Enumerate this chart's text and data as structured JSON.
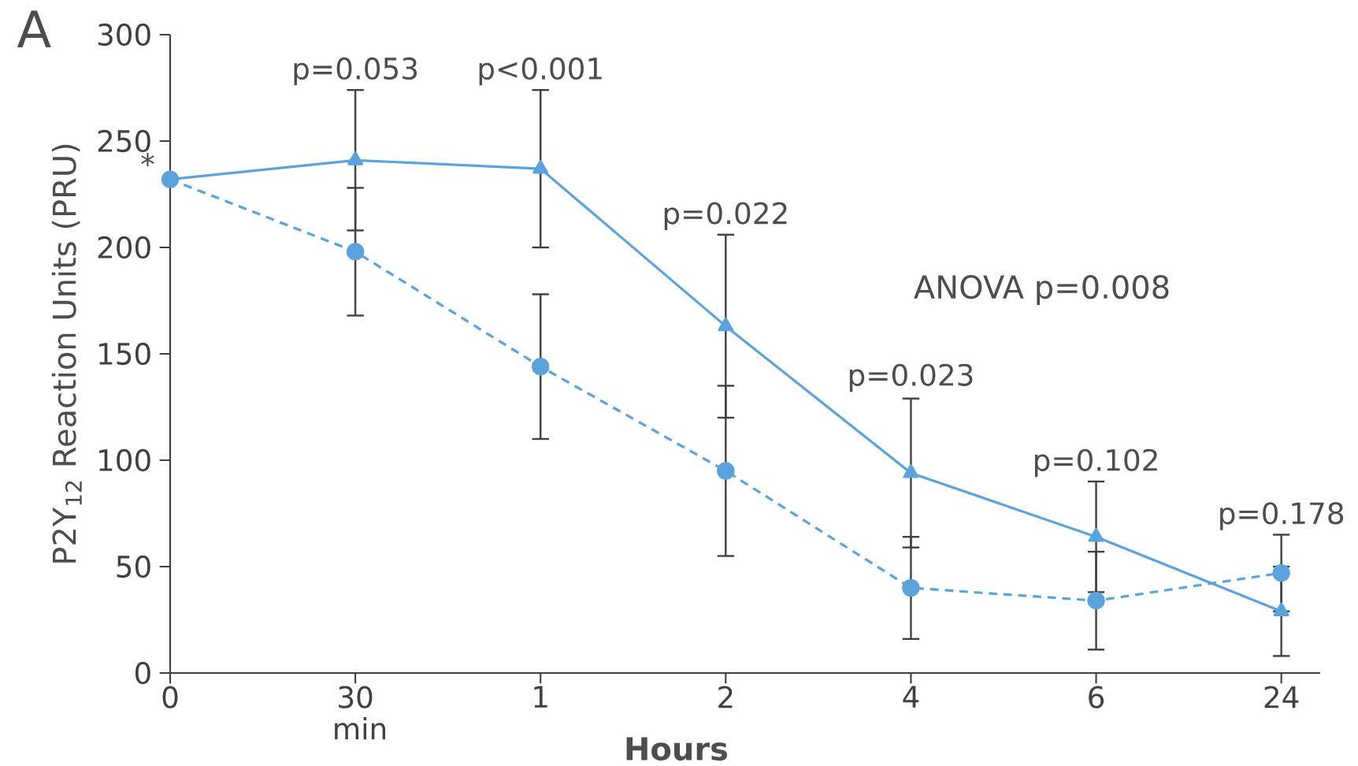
{
  "chart_data": {
    "type": "line",
    "title": "A",
    "xlabel": "Hours",
    "ylabel": "P2Y$_{12}$ Reaction Units (PRU)",
    "categories": [
      "0",
      "30 min",
      "1",
      "2",
      "4",
      "6",
      "24"
    ],
    "ylim": [
      0,
      300
    ],
    "yticks": [
      0,
      50,
      100,
      150,
      200,
      250,
      300
    ],
    "grid": false,
    "series": [
      {
        "color": "#5ba3dc",
        "marker": "triangle",
        "line_style": "solid",
        "values": [
          232,
          241,
          237,
          163,
          94,
          64,
          29
        ],
        "errors": [
          null,
          33,
          37,
          43,
          35,
          26,
          21
        ]
      },
      {
        "color": "#5ba3dc",
        "marker": "circle",
        "line_style": "dashed",
        "values": [
          232,
          198,
          144,
          95,
          40,
          34,
          47
        ],
        "errors": [
          null,
          30,
          34,
          40,
          24,
          23,
          18
        ]
      }
    ],
    "annotations": [
      {
        "text": "*",
        "x": "0",
        "y": 232
      },
      {
        "text": "p=0.053",
        "x": "30 min",
        "y": 274
      },
      {
        "text": "p<0.001",
        "x": "1",
        "y": 274
      },
      {
        "text": "p=0.022",
        "x": "2",
        "y": 206
      },
      {
        "text": "p=0.023",
        "x": "4",
        "y": 130
      },
      {
        "text": "p=0.102",
        "x": "6",
        "y": 90
      },
      {
        "text": "p=0.178",
        "x": "24",
        "y": 65
      },
      "ANOVA p=0.008"
    ]
  }
}
